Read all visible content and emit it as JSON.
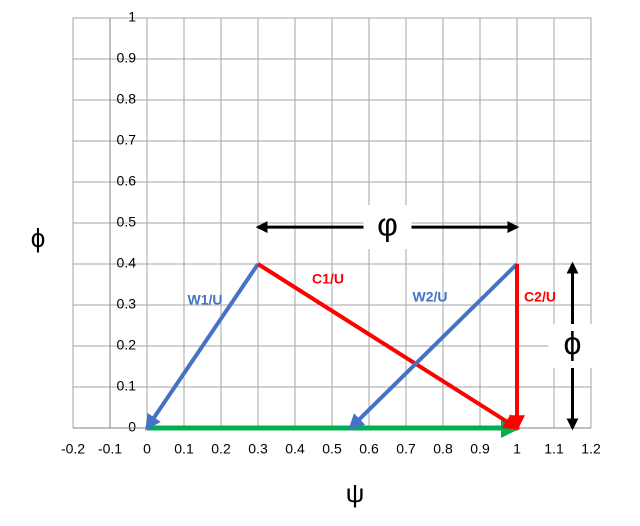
{
  "chart_data": {
    "type": "vector",
    "xlabel": "ψ",
    "ylabel": "ϕ",
    "xlim": [
      -0.2,
      1.2
    ],
    "ylim": [
      0,
      1
    ],
    "xticks": [
      -0.2,
      -0.1,
      0,
      0.1,
      0.2,
      0.3,
      0.4,
      0.5,
      0.6,
      0.7,
      0.8,
      0.9,
      1,
      1.1,
      1.2
    ],
    "yticks": [
      0,
      0.1,
      0.2,
      0.3,
      0.4,
      0.5,
      0.6,
      0.7,
      0.8,
      0.9,
      1
    ],
    "grid": true,
    "series": [
      {
        "color": "#00b050",
        "x": [
          0,
          1
        ],
        "y": [
          0,
          0
        ]
      },
      {
        "name": "W1/U",
        "color": "#4472c4",
        "x": [
          0.3,
          0
        ],
        "y": [
          0.4,
          0
        ]
      },
      {
        "name": "C1/U",
        "color": "#ff0000",
        "x": [
          0.3,
          1
        ],
        "y": [
          0.4,
          0
        ]
      },
      {
        "name": "W2/U",
        "color": "#4472c4",
        "x": [
          1,
          0.55
        ],
        "y": [
          0.4,
          0
        ]
      },
      {
        "name": "C2/U",
        "color": "#ff0000",
        "x": [
          1,
          1
        ],
        "y": [
          0.4,
          0
        ]
      }
    ],
    "annotations": [
      {
        "text": "φ",
        "x": [
          0.3,
          1
        ],
        "y": [
          0.49,
          0.49
        ]
      },
      {
        "text": "ϕ",
        "x": [
          1.15,
          1.15
        ],
        "y": [
          0.4,
          0
        ]
      }
    ]
  }
}
